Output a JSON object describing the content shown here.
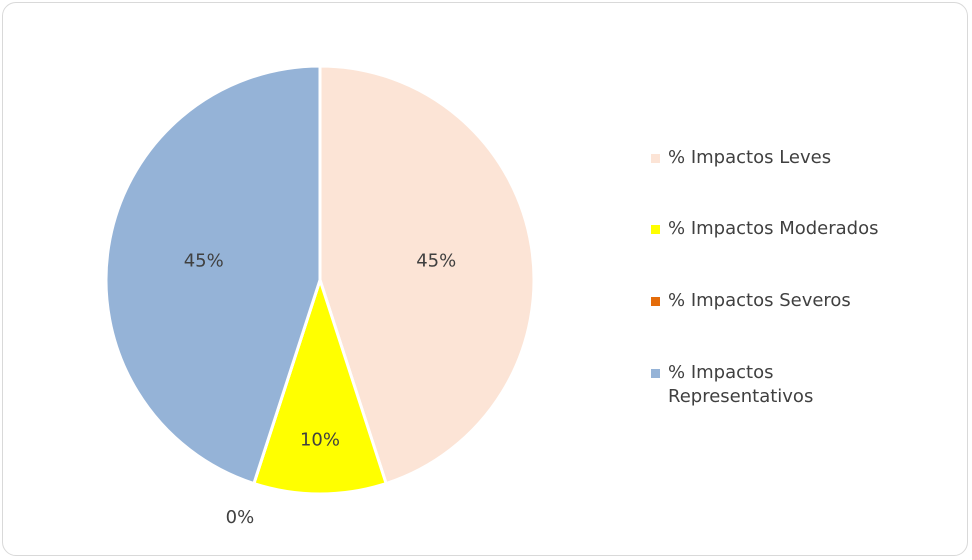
{
  "chart_data": {
    "type": "pie",
    "title": "",
    "slices": [
      {
        "label": "% Impactos Leves",
        "value": 45,
        "display": "45%",
        "color": "#fce4d6"
      },
      {
        "label": "% Impactos Moderados",
        "value": 10,
        "display": "10%",
        "color": "#ffff00"
      },
      {
        "label": "% Impactos Severos",
        "value": 0,
        "display": "0%",
        "color": "#e46c0a"
      },
      {
        "label": "% Impactos Representativos",
        "value": 45,
        "display": "45%",
        "color": "#95b3d7"
      }
    ],
    "legend_position": "right",
    "start_angle_deg": 0,
    "direction": "clockwise"
  }
}
